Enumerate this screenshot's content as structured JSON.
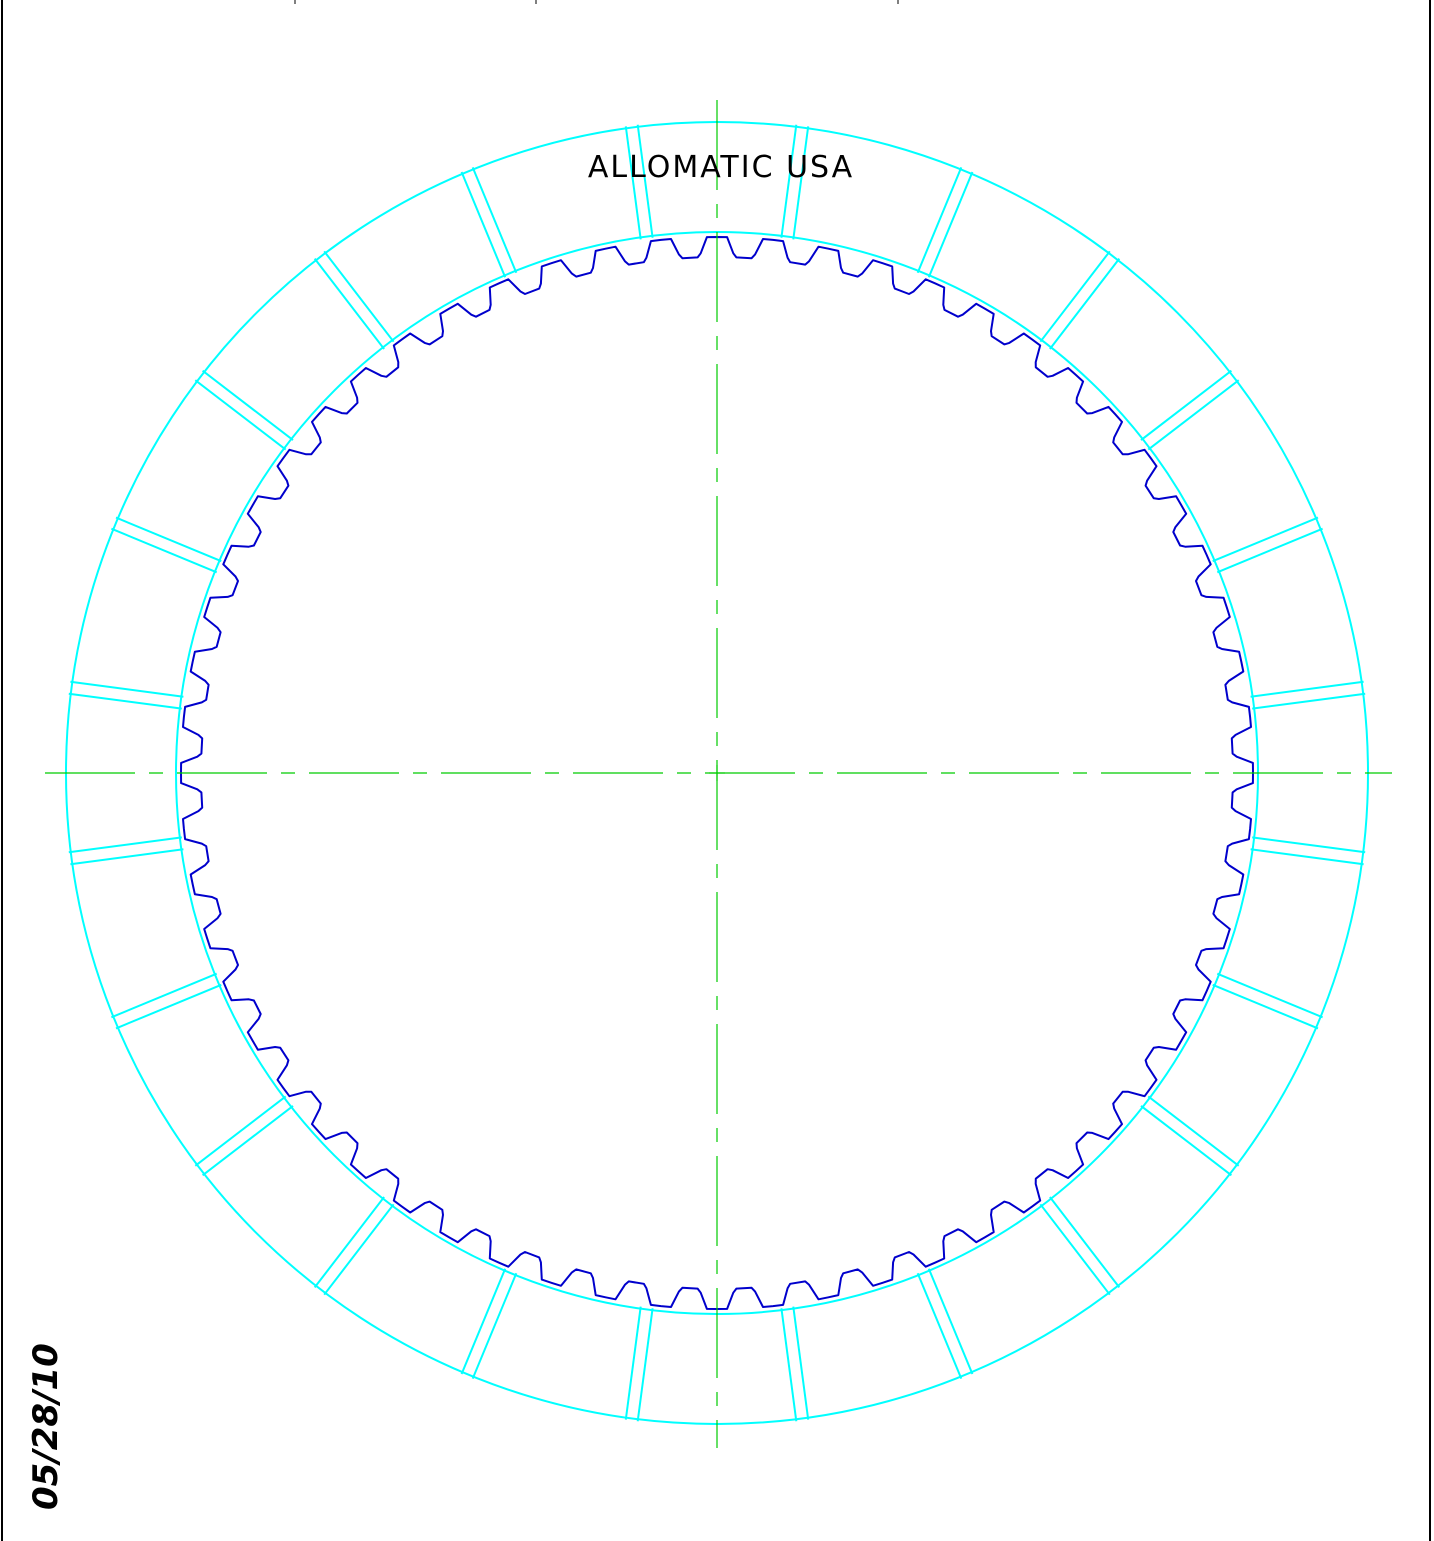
{
  "drawing": {
    "brand_label": "ALLOMATIC USA",
    "date_label": "05/28/10",
    "outer_slot_count": 24,
    "inner_tooth_count": 60,
    "colors": {
      "friction_ring": "#00ffff",
      "spline_teeth": "#0000cc",
      "centerlines": "#00cc00",
      "border": "#000000",
      "text": "#000000"
    }
  }
}
